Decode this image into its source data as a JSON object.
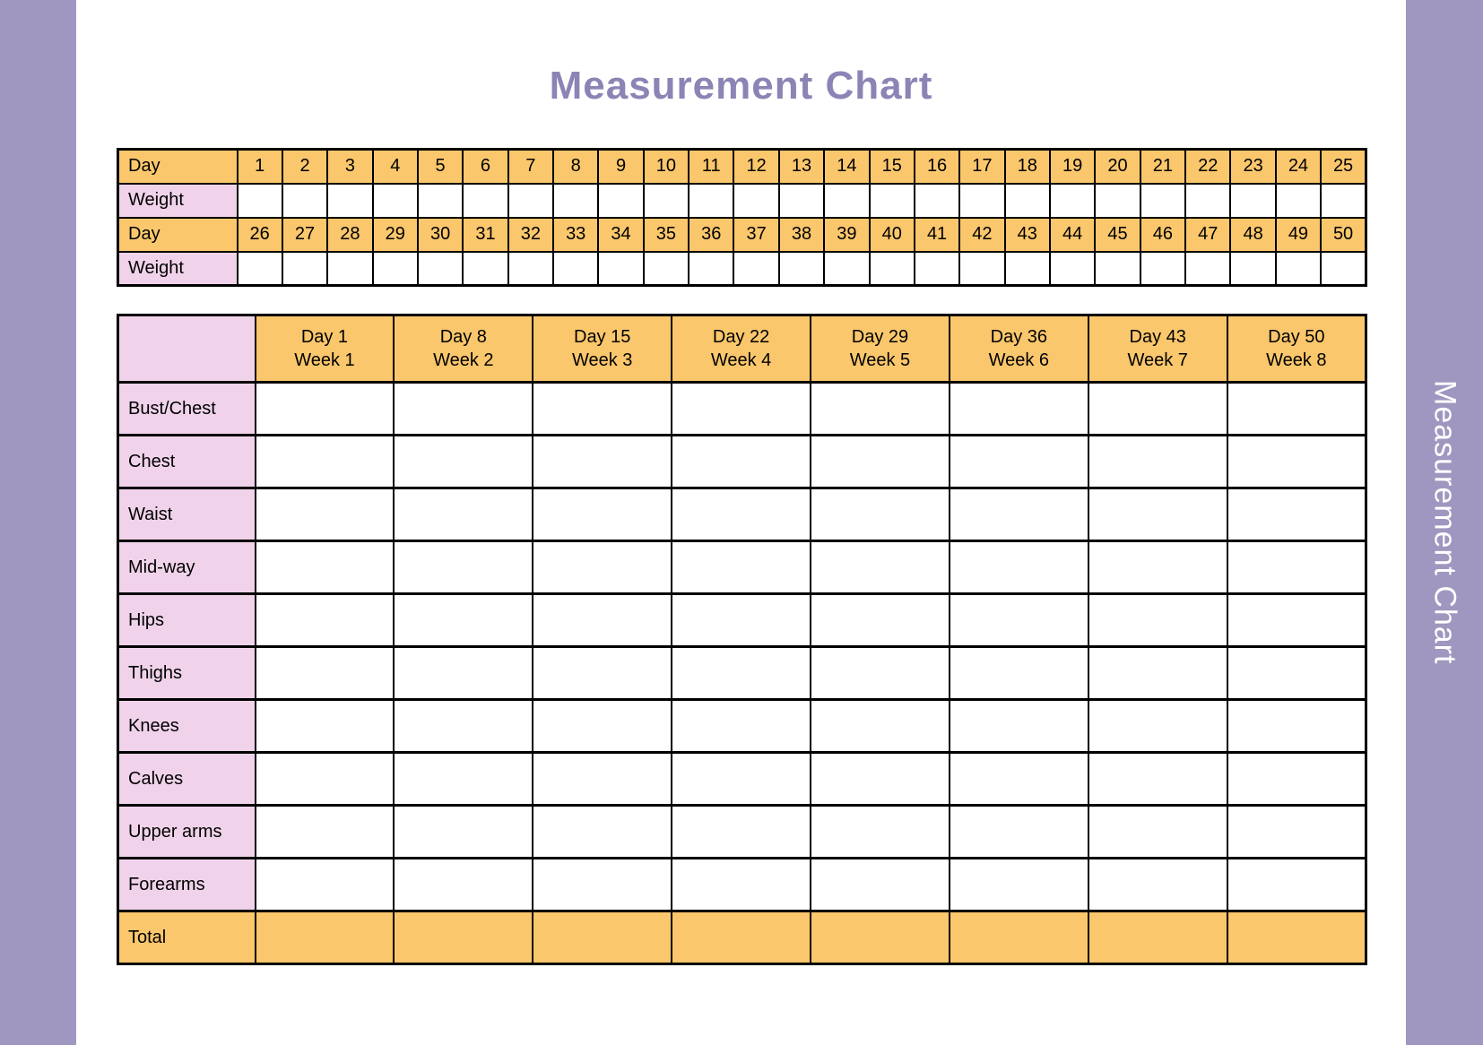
{
  "page": {
    "title": "Measurement Chart",
    "side_label": "Measurement Chart"
  },
  "colors": {
    "band": "#9F97BF",
    "title_text": "#8C84B5",
    "header_orange": "#FAC76C",
    "label_pink": "#F0D3EA",
    "grid_border": "#000000",
    "side_text": "#FFFFFF"
  },
  "daily_table": {
    "day_label": "Day",
    "weight_label": "Weight",
    "days_row1": [
      1,
      2,
      3,
      4,
      5,
      6,
      7,
      8,
      9,
      10,
      11,
      12,
      13,
      14,
      15,
      16,
      17,
      18,
      19,
      20,
      21,
      22,
      23,
      24,
      25
    ],
    "weights_row1": [
      "",
      "",
      "",
      "",
      "",
      "",
      "",
      "",
      "",
      "",
      "",
      "",
      "",
      "",
      "",
      "",
      "",
      "",
      "",
      "",
      "",
      "",
      "",
      "",
      ""
    ],
    "days_row2": [
      26,
      27,
      28,
      29,
      30,
      31,
      32,
      33,
      34,
      35,
      36,
      37,
      38,
      39,
      40,
      41,
      42,
      43,
      44,
      45,
      46,
      47,
      48,
      49,
      50
    ],
    "weights_row2": [
      "",
      "",
      "",
      "",
      "",
      "",
      "",
      "",
      "",
      "",
      "",
      "",
      "",
      "",
      "",
      "",
      "",
      "",
      "",
      "",
      "",
      "",
      "",
      "",
      ""
    ]
  },
  "weekly_table": {
    "corner_label": "",
    "columns": [
      {
        "day": "Day 1",
        "week": "Week 1"
      },
      {
        "day": "Day 8",
        "week": "Week 2"
      },
      {
        "day": "Day 15",
        "week": "Week 3"
      },
      {
        "day": "Day 22",
        "week": "Week 4"
      },
      {
        "day": "Day 29",
        "week": "Week 5"
      },
      {
        "day": "Day 36",
        "week": "Week 6"
      },
      {
        "day": "Day 43",
        "week": "Week 7"
      },
      {
        "day": "Day 50",
        "week": "Week 8"
      }
    ],
    "rows": [
      {
        "label": "Bust/Chest",
        "values": [
          "",
          "",
          "",
          "",
          "",
          "",
          "",
          ""
        ]
      },
      {
        "label": "Chest",
        "values": [
          "",
          "",
          "",
          "",
          "",
          "",
          "",
          ""
        ]
      },
      {
        "label": "Waist",
        "values": [
          "",
          "",
          "",
          "",
          "",
          "",
          "",
          ""
        ]
      },
      {
        "label": "Mid-way",
        "values": [
          "",
          "",
          "",
          "",
          "",
          "",
          "",
          ""
        ]
      },
      {
        "label": "Hips",
        "values": [
          "",
          "",
          "",
          "",
          "",
          "",
          "",
          ""
        ]
      },
      {
        "label": "Thighs",
        "values": [
          "",
          "",
          "",
          "",
          "",
          "",
          "",
          ""
        ]
      },
      {
        "label": "Knees",
        "values": [
          "",
          "",
          "",
          "",
          "",
          "",
          "",
          ""
        ]
      },
      {
        "label": "Calves",
        "values": [
          "",
          "",
          "",
          "",
          "",
          "",
          "",
          ""
        ]
      },
      {
        "label": "Upper arms",
        "values": [
          "",
          "",
          "",
          "",
          "",
          "",
          "",
          ""
        ]
      },
      {
        "label": "Forearms",
        "values": [
          "",
          "",
          "",
          "",
          "",
          "",
          "",
          ""
        ]
      }
    ],
    "total_row": {
      "label": "Total",
      "values": [
        "",
        "",
        "",
        "",
        "",
        "",
        "",
        ""
      ]
    }
  }
}
